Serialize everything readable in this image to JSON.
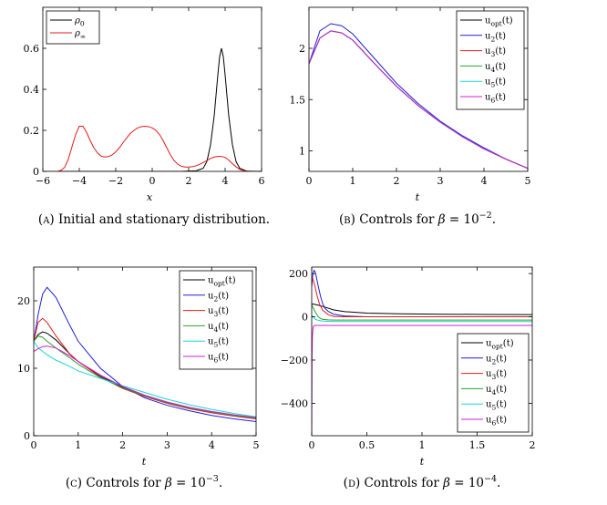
{
  "chart_data": [
    {
      "id": "A",
      "type": "line",
      "caption": "(A) Initial and stationary distribution.",
      "xlabel": "x",
      "ylabel": "",
      "xlim": [
        -6,
        6
      ],
      "ylim": [
        0,
        0.8
      ],
      "xticks": [
        -6,
        -4,
        -2,
        0,
        2,
        4,
        6
      ],
      "xtick_labels": [
        "−6",
        "−4",
        "−2",
        "0",
        "2",
        "4",
        "6"
      ],
      "yticks": [
        0,
        0.2,
        0.4,
        0.6
      ],
      "ytick_labels": [
        "0",
        "0.2",
        "0.4",
        "0.6"
      ],
      "legend_position": "top-left",
      "series": [
        {
          "name": "ρ0",
          "color": "#000000",
          "x": [
            -6,
            1.6,
            2.4,
            2.8,
            3.0,
            3.2,
            3.4,
            3.6,
            3.7,
            3.8,
            3.9,
            4.0,
            4.2,
            4.4,
            4.6,
            4.8,
            5.2,
            6.0
          ],
          "y": [
            0,
            0,
            0.003,
            0.015,
            0.048,
            0.13,
            0.27,
            0.47,
            0.56,
            0.6,
            0.56,
            0.47,
            0.27,
            0.13,
            0.048,
            0.015,
            0.001,
            0
          ]
        },
        {
          "name": "ρ∞",
          "color": "#e41a1c",
          "x": [
            -6,
            -5.2,
            -5.0,
            -4.8,
            -4.6,
            -4.4,
            -4.2,
            -4.0,
            -3.8,
            -3.6,
            -3.4,
            -3.2,
            -3.0,
            -2.8,
            -2.6,
            -2.4,
            -2.2,
            -2.0,
            -1.8,
            -1.6,
            -1.4,
            -1.2,
            -1.0,
            -0.8,
            -0.6,
            -0.4,
            -0.2,
            0.0,
            0.2,
            0.4,
            0.6,
            0.8,
            1.0,
            1.2,
            1.4,
            1.6,
            1.8,
            2.0,
            2.2,
            2.4,
            2.6,
            2.8,
            3.0,
            3.2,
            3.4,
            3.6,
            3.8,
            4.0,
            4.2,
            4.4,
            4.6,
            4.8,
            5.0,
            5.2,
            5.6,
            6.0
          ],
          "y": [
            0,
            0,
            0.005,
            0.02,
            0.06,
            0.12,
            0.18,
            0.22,
            0.22,
            0.19,
            0.15,
            0.115,
            0.09,
            0.074,
            0.07,
            0.072,
            0.08,
            0.095,
            0.115,
            0.14,
            0.163,
            0.185,
            0.2,
            0.212,
            0.218,
            0.22,
            0.218,
            0.212,
            0.2,
            0.18,
            0.15,
            0.115,
            0.08,
            0.053,
            0.035,
            0.025,
            0.021,
            0.021,
            0.023,
            0.027,
            0.034,
            0.043,
            0.053,
            0.063,
            0.07,
            0.073,
            0.073,
            0.068,
            0.055,
            0.038,
            0.022,
            0.01,
            0.004,
            0,
            0,
            0
          ]
        }
      ]
    },
    {
      "id": "B",
      "type": "line",
      "caption": "(B) Controls for β = 10",
      "caption_sup": "−2",
      "caption_tail": ".",
      "xlabel": "t",
      "ylabel": "",
      "xlim": [
        0,
        5
      ],
      "ylim": [
        0.8,
        2.4
      ],
      "xticks": [
        0,
        1,
        2,
        3,
        4,
        5
      ],
      "xtick_labels": [
        "0",
        "1",
        "2",
        "3",
        "4",
        "5"
      ],
      "yticks": [
        1,
        1.5,
        2
      ],
      "ytick_labels": [
        "1",
        "1.5",
        "2"
      ],
      "legend_position": "top-right",
      "series": [
        {
          "name": "uopt(t)",
          "color": "#000000",
          "x": [
            0,
            0.25,
            0.5,
            0.75,
            1,
            1.5,
            2,
            2.5,
            3,
            3.5,
            4,
            4.5,
            5
          ],
          "y": [
            1.85,
            2.1,
            2.17,
            2.15,
            2.08,
            1.85,
            1.63,
            1.44,
            1.28,
            1.14,
            1.02,
            0.92,
            0.83
          ]
        },
        {
          "name": "u2(t)",
          "color": "#1f1fd6",
          "x": [
            0,
            0.25,
            0.5,
            0.75,
            1,
            1.5,
            2,
            2.5,
            3,
            3.5,
            4,
            4.5,
            5
          ],
          "y": [
            1.85,
            2.17,
            2.24,
            2.22,
            2.14,
            1.9,
            1.66,
            1.46,
            1.29,
            1.15,
            1.03,
            0.92,
            0.83
          ]
        },
        {
          "name": "u3(t)",
          "color": "#e41a1c",
          "x": [
            0,
            0.25,
            0.5,
            0.75,
            1,
            1.5,
            2,
            2.5,
            3,
            3.5,
            4,
            4.5,
            5
          ],
          "y": [
            1.85,
            2.1,
            2.17,
            2.15,
            2.08,
            1.85,
            1.63,
            1.44,
            1.28,
            1.14,
            1.02,
            0.92,
            0.83
          ]
        },
        {
          "name": "u4(t)",
          "color": "#2ca02c",
          "x": [
            0,
            0.25,
            0.5,
            0.75,
            1,
            1.5,
            2,
            2.5,
            3,
            3.5,
            4,
            4.5,
            5
          ],
          "y": [
            1.85,
            2.1,
            2.17,
            2.15,
            2.08,
            1.85,
            1.63,
            1.44,
            1.28,
            1.14,
            1.02,
            0.92,
            0.83
          ]
        },
        {
          "name": "u5(t)",
          "color": "#17d7d7",
          "x": [
            0,
            0.25,
            0.5,
            0.75,
            1,
            1.5,
            2,
            2.5,
            3,
            3.5,
            4,
            4.5,
            5
          ],
          "y": [
            1.85,
            2.1,
            2.17,
            2.15,
            2.08,
            1.85,
            1.63,
            1.44,
            1.28,
            1.14,
            1.02,
            0.92,
            0.83
          ]
        },
        {
          "name": "u6(t)",
          "color": "#d21fd2",
          "x": [
            0,
            0.25,
            0.5,
            0.75,
            1,
            1.5,
            2,
            2.5,
            3,
            3.5,
            4,
            4.5,
            5
          ],
          "y": [
            1.85,
            2.1,
            2.17,
            2.15,
            2.08,
            1.85,
            1.63,
            1.44,
            1.28,
            1.14,
            1.02,
            0.92,
            0.83
          ]
        }
      ]
    },
    {
      "id": "C",
      "type": "line",
      "caption": "(C) Controls for β = 10",
      "caption_sup": "−3",
      "caption_tail": ".",
      "xlabel": "t",
      "ylabel": "",
      "xlim": [
        0,
        5
      ],
      "ylim": [
        0,
        25
      ],
      "xticks": [
        0,
        1,
        2,
        3,
        4,
        5
      ],
      "xtick_labels": [
        "0",
        "1",
        "2",
        "3",
        "4",
        "5"
      ],
      "yticks": [
        0,
        10,
        20
      ],
      "ytick_labels": [
        "0",
        "10",
        "20"
      ],
      "legend_position": "top-right",
      "series": [
        {
          "name": "uopt(t)",
          "color": "#000000",
          "x": [
            0,
            0.1,
            0.2,
            0.3,
            0.5,
            0.8,
            1,
            1.5,
            2,
            2.5,
            3,
            3.5,
            4,
            4.5,
            5
          ],
          "y": [
            14,
            15,
            15.4,
            15.2,
            14.2,
            12.2,
            11,
            8.8,
            7.2,
            5.9,
            4.9,
            4.1,
            3.5,
            3.0,
            2.6
          ]
        },
        {
          "name": "u2(t)",
          "color": "#1f1fd6",
          "x": [
            0,
            0.1,
            0.2,
            0.3,
            0.5,
            0.8,
            1,
            1.5,
            2,
            2.5,
            3,
            3.5,
            4,
            4.5,
            5
          ],
          "y": [
            14,
            18,
            21,
            22,
            20.5,
            16.5,
            14,
            10,
            7.3,
            5.6,
            4.5,
            3.7,
            3.0,
            2.5,
            2.1
          ]
        },
        {
          "name": "u3(t)",
          "color": "#e41a1c",
          "x": [
            0,
            0.1,
            0.2,
            0.3,
            0.5,
            0.8,
            1,
            1.5,
            2,
            2.5,
            3,
            3.5,
            4,
            4.5,
            5
          ],
          "y": [
            14,
            16.8,
            17.4,
            16.8,
            14.8,
            12.2,
            11,
            8.7,
            7.0,
            5.8,
            4.8,
            4.0,
            3.4,
            2.9,
            2.5
          ]
        },
        {
          "name": "u4(t)",
          "color": "#2ca02c",
          "x": [
            0,
            0.1,
            0.2,
            0.3,
            0.5,
            0.8,
            1,
            1.5,
            2,
            2.5,
            3,
            3.5,
            4,
            4.5,
            5
          ],
          "y": [
            14,
            14.8,
            14.6,
            14.0,
            13.0,
            11.6,
            10.6,
            8.6,
            7.1,
            5.9,
            4.9,
            4.1,
            3.5,
            3.0,
            2.6
          ]
        },
        {
          "name": "u5(t)",
          "color": "#17d7d7",
          "x": [
            0,
            0.1,
            0.2,
            0.3,
            0.5,
            0.8,
            1,
            1.5,
            2,
            2.5,
            3,
            3.5,
            4,
            4.5,
            5
          ],
          "y": [
            14,
            13.0,
            12.5,
            12.0,
            11.2,
            10.3,
            9.6,
            8.5,
            7.4,
            6.4,
            5.4,
            4.6,
            3.9,
            3.3,
            2.8
          ]
        },
        {
          "name": "u6(t)",
          "color": "#d21fd2",
          "x": [
            0,
            0.1,
            0.2,
            0.3,
            0.5,
            0.8,
            1,
            1.5,
            2,
            2.5,
            3,
            3.5,
            4,
            4.5,
            5
          ],
          "y": [
            12.5,
            12.9,
            13.2,
            13.3,
            13.0,
            11.9,
            11.0,
            9.0,
            7.3,
            6.0,
            5.0,
            4.2,
            3.6,
            3.1,
            2.7
          ]
        }
      ]
    },
    {
      "id": "D",
      "type": "line",
      "caption": "(D) Controls for β = 10",
      "caption_sup": "−4",
      "caption_tail": ".",
      "xlabel": "t",
      "ylabel": "",
      "xlim": [
        0,
        2
      ],
      "ylim": [
        -550,
        230
      ],
      "xticks": [
        0,
        0.5,
        1,
        1.5,
        2
      ],
      "xtick_labels": [
        "0",
        "0.5",
        "1",
        "1.5",
        "2"
      ],
      "yticks": [
        -400,
        -200,
        0,
        200
      ],
      "ytick_labels": [
        "−400",
        "−200",
        "0",
        "200"
      ],
      "legend_position": "bottom-right",
      "series": [
        {
          "name": "uopt(t)",
          "color": "#000000",
          "x": [
            0,
            0.02,
            0.05,
            0.1,
            0.15,
            0.2,
            0.3,
            0.5,
            0.8,
            1.2,
            1.6,
            2
          ],
          "y": [
            60,
            58,
            55,
            48,
            40,
            32,
            24,
            17,
            14,
            12,
            11,
            10
          ]
        },
        {
          "name": "u2(t)",
          "color": "#1f1fd6",
          "x": [
            0,
            0.01,
            0.02,
            0.03,
            0.04,
            0.06,
            0.08,
            0.1,
            0.12,
            0.15,
            0.2,
            0.3,
            0.5,
            1,
            2
          ],
          "y": [
            140,
            195,
            215,
            210,
            190,
            140,
            95,
            60,
            40,
            25,
            12,
            4,
            0,
            0,
            0
          ]
        },
        {
          "name": "u3(t)",
          "color": "#e41a1c",
          "x": [
            0,
            0.01,
            0.02,
            0.03,
            0.05,
            0.07,
            0.1,
            0.15,
            0.2,
            0.3,
            0.5,
            1,
            2
          ],
          "y": [
            165,
            175,
            160,
            140,
            95,
            60,
            30,
            10,
            2,
            0,
            0,
            0,
            0
          ]
        },
        {
          "name": "u4(t)",
          "color": "#2ca02c",
          "x": [
            0,
            0.01,
            0.02,
            0.04,
            0.06,
            0.08,
            0.1,
            0.15,
            0.2,
            0.3,
            0.5,
            1,
            2
          ],
          "y": [
            55,
            45,
            35,
            15,
            0,
            -8,
            -12,
            -14,
            -15,
            -15,
            -15,
            -15,
            -15
          ]
        },
        {
          "name": "u5(t)",
          "color": "#17d7d7",
          "x": [
            0,
            0.01,
            0.02,
            0.03,
            0.05,
            0.1,
            0.2,
            0.5,
            1,
            2
          ],
          "y": [
            5,
            2,
            -5,
            -10,
            -15,
            -20,
            -22,
            -22,
            -22,
            -22
          ]
        },
        {
          "name": "u6(t)",
          "color": "#d21fd2",
          "x": [
            0,
            0.003,
            0.006,
            0.01,
            0.015,
            0.02,
            0.03,
            0.05,
            0.1,
            0.3,
            1,
            2
          ],
          "y": [
            -550,
            -180,
            -100,
            -60,
            -45,
            -42,
            -40,
            -40,
            -40,
            -40,
            -40,
            -40
          ]
        }
      ]
    }
  ]
}
